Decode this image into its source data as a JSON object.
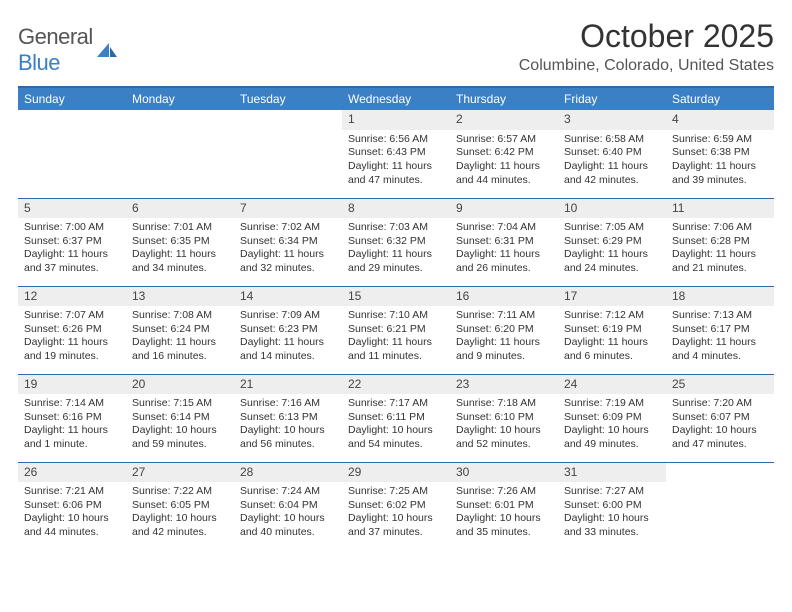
{
  "logo": {
    "text1": "General",
    "text2": "Blue"
  },
  "title": "October 2025",
  "location": "Columbine, Colorado, United States",
  "colors": {
    "header_bg": "#3b7fc4",
    "header_border": "#2f6aa8",
    "daynum_bg": "#eeeeee",
    "text": "#333333",
    "page_bg": "#ffffff"
  },
  "fonts": {
    "title_pt": 32,
    "location_pt": 16,
    "th_pt": 12,
    "cell_pt": 10.5
  },
  "weekdays": [
    "Sunday",
    "Monday",
    "Tuesday",
    "Wednesday",
    "Thursday",
    "Friday",
    "Saturday"
  ],
  "weeks": [
    [
      null,
      null,
      null,
      {
        "n": "1",
        "sunrise": "6:56 AM",
        "sunset": "6:43 PM",
        "daylight": "11 hours and 47 minutes."
      },
      {
        "n": "2",
        "sunrise": "6:57 AM",
        "sunset": "6:42 PM",
        "daylight": "11 hours and 44 minutes."
      },
      {
        "n": "3",
        "sunrise": "6:58 AM",
        "sunset": "6:40 PM",
        "daylight": "11 hours and 42 minutes."
      },
      {
        "n": "4",
        "sunrise": "6:59 AM",
        "sunset": "6:38 PM",
        "daylight": "11 hours and 39 minutes."
      }
    ],
    [
      {
        "n": "5",
        "sunrise": "7:00 AM",
        "sunset": "6:37 PM",
        "daylight": "11 hours and 37 minutes."
      },
      {
        "n": "6",
        "sunrise": "7:01 AM",
        "sunset": "6:35 PM",
        "daylight": "11 hours and 34 minutes."
      },
      {
        "n": "7",
        "sunrise": "7:02 AM",
        "sunset": "6:34 PM",
        "daylight": "11 hours and 32 minutes."
      },
      {
        "n": "8",
        "sunrise": "7:03 AM",
        "sunset": "6:32 PM",
        "daylight": "11 hours and 29 minutes."
      },
      {
        "n": "9",
        "sunrise": "7:04 AM",
        "sunset": "6:31 PM",
        "daylight": "11 hours and 26 minutes."
      },
      {
        "n": "10",
        "sunrise": "7:05 AM",
        "sunset": "6:29 PM",
        "daylight": "11 hours and 24 minutes."
      },
      {
        "n": "11",
        "sunrise": "7:06 AM",
        "sunset": "6:28 PM",
        "daylight": "11 hours and 21 minutes."
      }
    ],
    [
      {
        "n": "12",
        "sunrise": "7:07 AM",
        "sunset": "6:26 PM",
        "daylight": "11 hours and 19 minutes."
      },
      {
        "n": "13",
        "sunrise": "7:08 AM",
        "sunset": "6:24 PM",
        "daylight": "11 hours and 16 minutes."
      },
      {
        "n": "14",
        "sunrise": "7:09 AM",
        "sunset": "6:23 PM",
        "daylight": "11 hours and 14 minutes."
      },
      {
        "n": "15",
        "sunrise": "7:10 AM",
        "sunset": "6:21 PM",
        "daylight": "11 hours and 11 minutes."
      },
      {
        "n": "16",
        "sunrise": "7:11 AM",
        "sunset": "6:20 PM",
        "daylight": "11 hours and 9 minutes."
      },
      {
        "n": "17",
        "sunrise": "7:12 AM",
        "sunset": "6:19 PM",
        "daylight": "11 hours and 6 minutes."
      },
      {
        "n": "18",
        "sunrise": "7:13 AM",
        "sunset": "6:17 PM",
        "daylight": "11 hours and 4 minutes."
      }
    ],
    [
      {
        "n": "19",
        "sunrise": "7:14 AM",
        "sunset": "6:16 PM",
        "daylight": "11 hours and 1 minute."
      },
      {
        "n": "20",
        "sunrise": "7:15 AM",
        "sunset": "6:14 PM",
        "daylight": "10 hours and 59 minutes."
      },
      {
        "n": "21",
        "sunrise": "7:16 AM",
        "sunset": "6:13 PM",
        "daylight": "10 hours and 56 minutes."
      },
      {
        "n": "22",
        "sunrise": "7:17 AM",
        "sunset": "6:11 PM",
        "daylight": "10 hours and 54 minutes."
      },
      {
        "n": "23",
        "sunrise": "7:18 AM",
        "sunset": "6:10 PM",
        "daylight": "10 hours and 52 minutes."
      },
      {
        "n": "24",
        "sunrise": "7:19 AM",
        "sunset": "6:09 PM",
        "daylight": "10 hours and 49 minutes."
      },
      {
        "n": "25",
        "sunrise": "7:20 AM",
        "sunset": "6:07 PM",
        "daylight": "10 hours and 47 minutes."
      }
    ],
    [
      {
        "n": "26",
        "sunrise": "7:21 AM",
        "sunset": "6:06 PM",
        "daylight": "10 hours and 44 minutes."
      },
      {
        "n": "27",
        "sunrise": "7:22 AM",
        "sunset": "6:05 PM",
        "daylight": "10 hours and 42 minutes."
      },
      {
        "n": "28",
        "sunrise": "7:24 AM",
        "sunset": "6:04 PM",
        "daylight": "10 hours and 40 minutes."
      },
      {
        "n": "29",
        "sunrise": "7:25 AM",
        "sunset": "6:02 PM",
        "daylight": "10 hours and 37 minutes."
      },
      {
        "n": "30",
        "sunrise": "7:26 AM",
        "sunset": "6:01 PM",
        "daylight": "10 hours and 35 minutes."
      },
      {
        "n": "31",
        "sunrise": "7:27 AM",
        "sunset": "6:00 PM",
        "daylight": "10 hours and 33 minutes."
      },
      null
    ]
  ],
  "labels": {
    "sunrise": "Sunrise: ",
    "sunset": "Sunset: ",
    "daylight": "Daylight: "
  }
}
